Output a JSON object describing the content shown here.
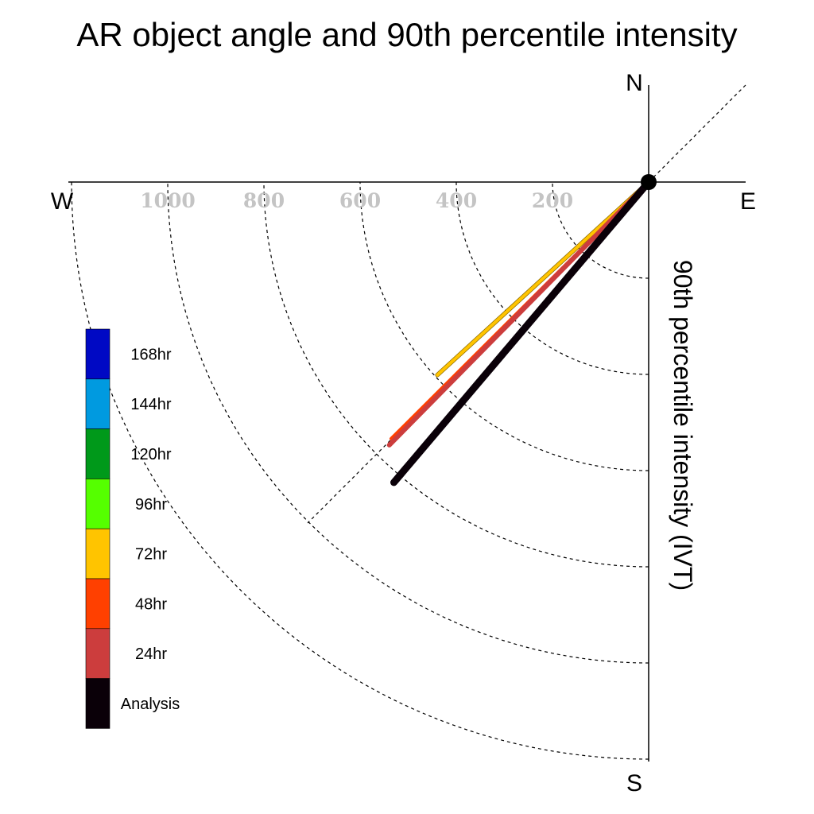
{
  "chart_data": {
    "type": "polar-vector",
    "title": "AR object angle and 90th percentile intensity",
    "radial_label": "90th percentile intensity (IVT)",
    "directions": {
      "north": "N",
      "south": "S",
      "east": "E",
      "west": "W"
    },
    "radial_ticks": [
      200,
      400,
      600,
      800,
      1000
    ],
    "radial_max": 1200,
    "grid": true,
    "legend_position": "left",
    "legend": [
      {
        "label": "168hr",
        "color": "#0009c4"
      },
      {
        "label": "144hr",
        "color": "#009ae0"
      },
      {
        "label": "120hr",
        "color": "#00991a"
      },
      {
        "label": "96hr",
        "color": "#55ff00"
      },
      {
        "label": "72hr",
        "color": "#ffc400"
      },
      {
        "label": "48hr",
        "color": "#ff4000"
      },
      {
        "label": "24hr",
        "color": "#cc3d3d"
      },
      {
        "label": "Analysis",
        "color": "#0a0008"
      }
    ],
    "series": [
      {
        "name": "72hr",
        "angle_deg": 227.6,
        "intensity": 595,
        "color": "#ffc400"
      },
      {
        "name": "48hr",
        "angle_deg": 225.1,
        "intensity": 756,
        "color": "#ff4000"
      },
      {
        "name": "24hr",
        "angle_deg": 224.6,
        "intensity": 768,
        "color": "#cc3d3d"
      },
      {
        "name": "Analysis",
        "angle_deg": 220.3,
        "intensity": 819,
        "color": "#0a0008"
      }
    ]
  }
}
